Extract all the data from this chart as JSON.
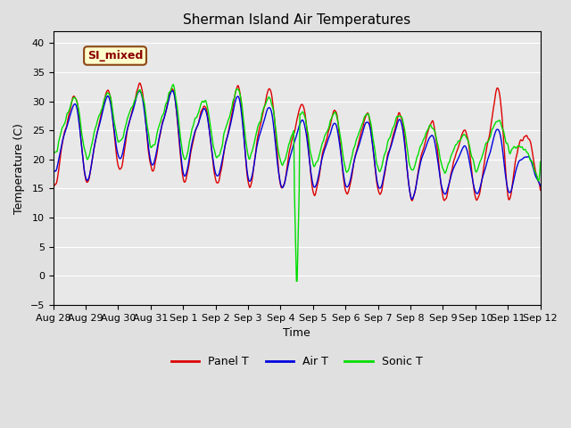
{
  "title": "Sherman Island Air Temperatures",
  "xlabel": "Time",
  "ylabel": "Temperature (C)",
  "ylim": [
    -5,
    42
  ],
  "yticks": [
    -5,
    0,
    5,
    10,
    15,
    20,
    25,
    30,
    35,
    40
  ],
  "xtick_labels": [
    "Aug 28",
    "Aug 29",
    "Aug 30",
    "Aug 31",
    "Sep 1",
    "Sep 2",
    "Sep 3",
    "Sep 4",
    "Sep 5",
    "Sep 6",
    "Sep 7",
    "Sep 8",
    "Sep 9",
    "Sep 10",
    "Sep 11",
    "Sep 12"
  ],
  "annotation_text": "SI_mixed",
  "panel_color": "#DD0000",
  "air_color": "#0000DD",
  "sonic_color": "#00DD00",
  "plot_bg_color": "#E8E8E8",
  "fig_bg_color": "#E0E0E0",
  "legend_labels": [
    "Panel T",
    "Air T",
    "Sonic T"
  ],
  "title_fontsize": 11,
  "axis_label_fontsize": 9,
  "tick_label_fontsize": 8,
  "n_days": 15,
  "spike_day": 7.0,
  "spike_value": -3.5
}
